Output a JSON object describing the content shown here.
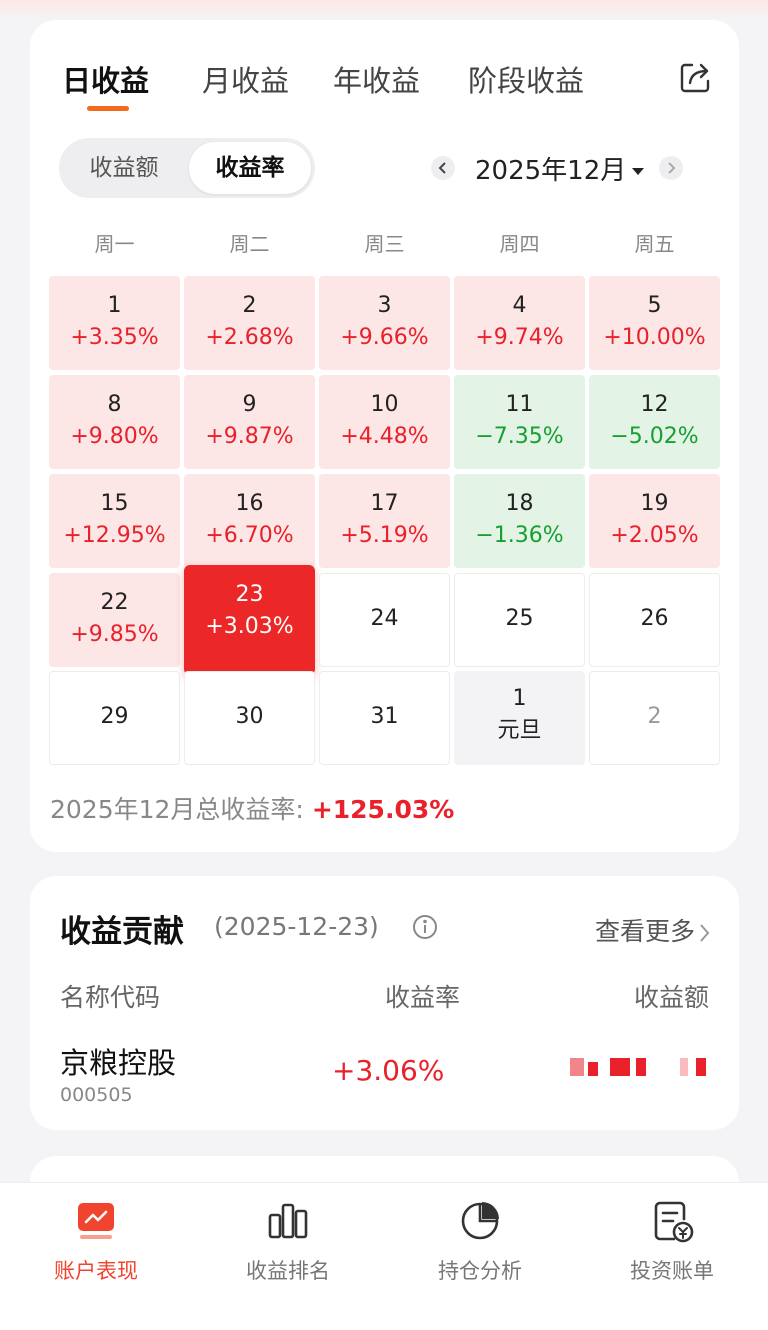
{
  "tabs": [
    {
      "label": "日收益",
      "active": true
    },
    {
      "label": "月收益",
      "active": false
    },
    {
      "label": "年收益",
      "active": false
    },
    {
      "label": "阶段收益",
      "active": false
    }
  ],
  "toggle": {
    "amount_label": "收益额",
    "rate_label": "收益率",
    "selected": "收益率"
  },
  "month": {
    "label": "2025年12月"
  },
  "weekdays": [
    "周一",
    "周二",
    "周三",
    "周四",
    "周五"
  ],
  "calendar": [
    {
      "day": "1",
      "value": "+3.35%",
      "state": "up"
    },
    {
      "day": "2",
      "value": "+2.68%",
      "state": "up"
    },
    {
      "day": "3",
      "value": "+9.66%",
      "state": "up"
    },
    {
      "day": "4",
      "value": "+9.74%",
      "state": "up"
    },
    {
      "day": "5",
      "value": "+10.00%",
      "state": "up"
    },
    {
      "day": "8",
      "value": "+9.80%",
      "state": "up"
    },
    {
      "day": "9",
      "value": "+9.87%",
      "state": "up"
    },
    {
      "day": "10",
      "value": "+4.48%",
      "state": "up"
    },
    {
      "day": "11",
      "value": "−7.35%",
      "state": "down"
    },
    {
      "day": "12",
      "value": "−5.02%",
      "state": "down"
    },
    {
      "day": "15",
      "value": "+12.95%",
      "state": "up"
    },
    {
      "day": "16",
      "value": "+6.70%",
      "state": "up"
    },
    {
      "day": "17",
      "value": "+5.19%",
      "state": "up"
    },
    {
      "day": "18",
      "value": "−1.36%",
      "state": "down"
    },
    {
      "day": "19",
      "value": "+2.05%",
      "state": "up"
    },
    {
      "day": "22",
      "value": "+9.85%",
      "state": "up"
    },
    {
      "day": "23",
      "value": "+3.03%",
      "state": "selected"
    },
    {
      "day": "24",
      "value": "",
      "state": "empty"
    },
    {
      "day": "25",
      "value": "",
      "state": "empty"
    },
    {
      "day": "26",
      "value": "",
      "state": "empty"
    },
    {
      "day": "29",
      "value": "",
      "state": "empty"
    },
    {
      "day": "30",
      "value": "",
      "state": "empty"
    },
    {
      "day": "31",
      "value": "",
      "state": "empty"
    },
    {
      "day": "1",
      "value": "元旦",
      "state": "holiday"
    },
    {
      "day": "2",
      "value": "",
      "state": "next"
    }
  ],
  "summary": {
    "label": "2025年12月总收益率:",
    "value": "+125.03%"
  },
  "contribution": {
    "title": "收益贡献",
    "date": "(2025-12-23)",
    "more": "查看更多",
    "headers": {
      "name": "名称代码",
      "rate": "收益率",
      "amount": "收益额"
    },
    "rows": [
      {
        "name": "京粮控股",
        "code": "000505",
        "rate": "+3.06%"
      }
    ]
  },
  "bottom_nav": [
    {
      "label": "账户表现",
      "icon": "trend-chart-icon",
      "active": true
    },
    {
      "label": "收益排名",
      "icon": "bar-chart-icon",
      "active": false
    },
    {
      "label": "持仓分析",
      "icon": "pie-chart-icon",
      "active": false
    },
    {
      "label": "投资账单",
      "icon": "bill-icon",
      "active": false
    }
  ],
  "colors": {
    "accent": "#f26a1b",
    "up": "#e8212a",
    "down": "#17a02f",
    "selected": "#ec2727"
  }
}
